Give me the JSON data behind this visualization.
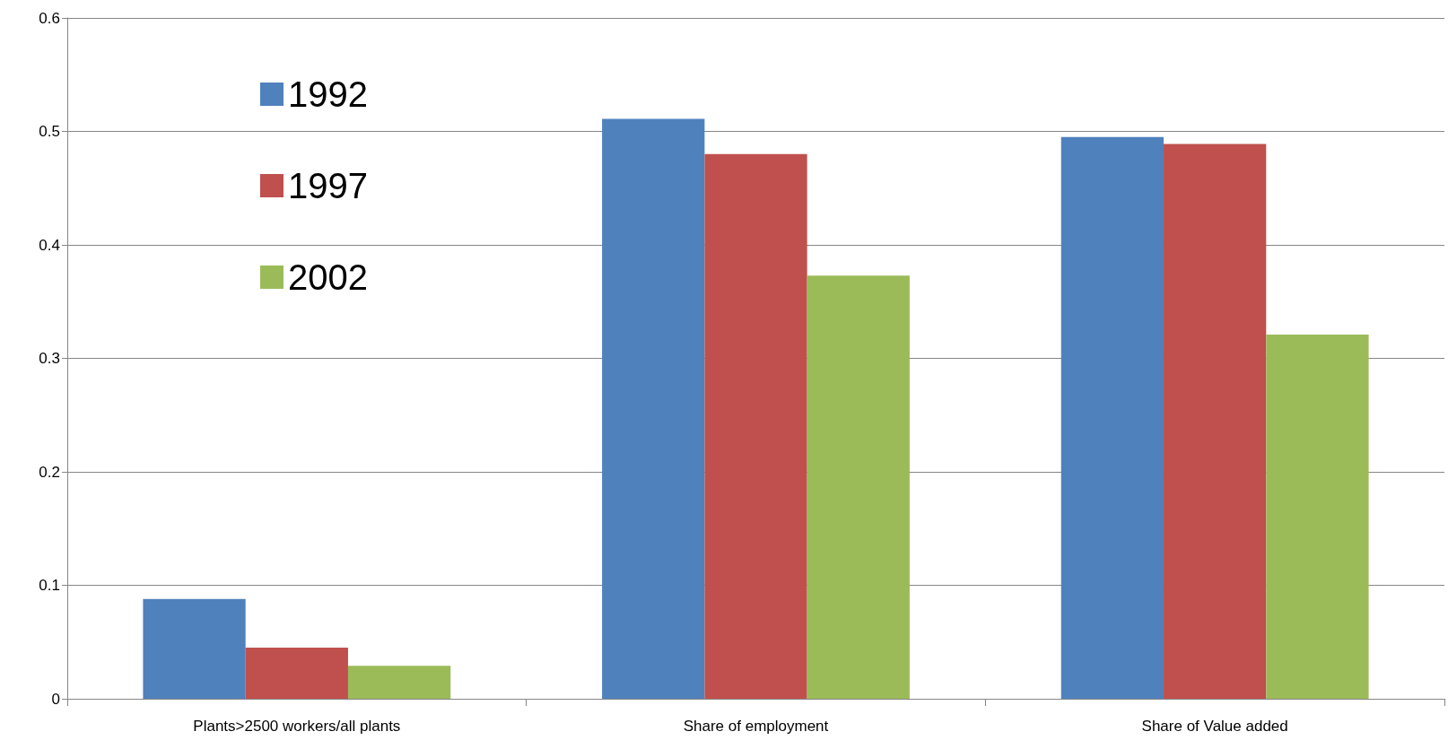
{
  "chart_data": {
    "type": "bar",
    "categories": [
      "Plants>2500 workers/all plants",
      "Share of employment",
      "Share of Value added"
    ],
    "series": [
      {
        "name": "1992",
        "color": "#4f81bd",
        "values": [
          0.088,
          0.511,
          0.495
        ]
      },
      {
        "name": "1997",
        "color": "#c0504d",
        "values": [
          0.045,
          0.48,
          0.489
        ]
      },
      {
        "name": "2002",
        "color": "#9bbb59",
        "values": [
          0.029,
          0.373,
          0.321
        ]
      }
    ],
    "ylim": [
      0,
      0.6
    ],
    "yticks": [
      0,
      0.1,
      0.2,
      0.3,
      0.4,
      0.5,
      0.6
    ],
    "grid": "y",
    "legend": "top left"
  }
}
